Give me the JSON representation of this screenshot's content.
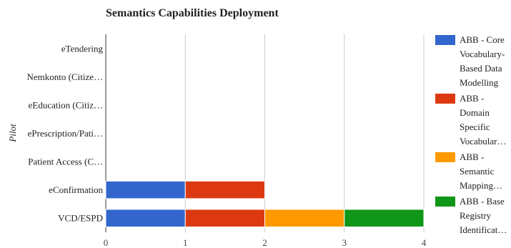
{
  "chart_data": {
    "type": "bar",
    "orientation": "horizontal",
    "stacked": true,
    "title": "Semantics Capabilities Deployment",
    "ylabel": "Pilot",
    "xlabel": "",
    "xlim": [
      0,
      4
    ],
    "xticks": [
      "0",
      "1",
      "2",
      "3",
      "4"
    ],
    "grid": true,
    "legend": "right",
    "categories": [
      "eTendering",
      "Nemkonto (Citize…",
      "eEducation (Citiz…",
      "ePrescription/Pati…",
      "Patient Access (C…",
      "eConfirmation",
      "VCD/ESPD"
    ],
    "series": [
      {
        "name": "ABB - Core Vocabulary-Based Data Modelling",
        "legend_lines": [
          "ABB - Core",
          "Vocabulary-",
          "Based Data",
          "Modelling"
        ],
        "color": "#3366cc",
        "values": [
          0,
          0,
          0,
          0,
          0,
          1,
          1
        ]
      },
      {
        "name": "ABB - Domain Specific Vocabular…",
        "legend_lines": [
          "ABB -",
          "Domain",
          "Specific",
          "Vocabular…"
        ],
        "color": "#dc3912",
        "values": [
          0,
          0,
          0,
          0,
          0,
          1,
          1
        ]
      },
      {
        "name": "ABB - Semantic Mapping…",
        "legend_lines": [
          "ABB -",
          "Semantic",
          "Mapping…"
        ],
        "color": "#ff9900",
        "values": [
          0,
          0,
          0,
          0,
          0,
          0,
          1
        ]
      },
      {
        "name": "ABB - Base Registry Identificat…",
        "legend_lines": [
          "ABB - Base",
          "Registry",
          "Identificat…"
        ],
        "color": "#109618",
        "values": [
          0,
          0,
          0,
          0,
          0,
          0,
          1
        ]
      }
    ]
  }
}
